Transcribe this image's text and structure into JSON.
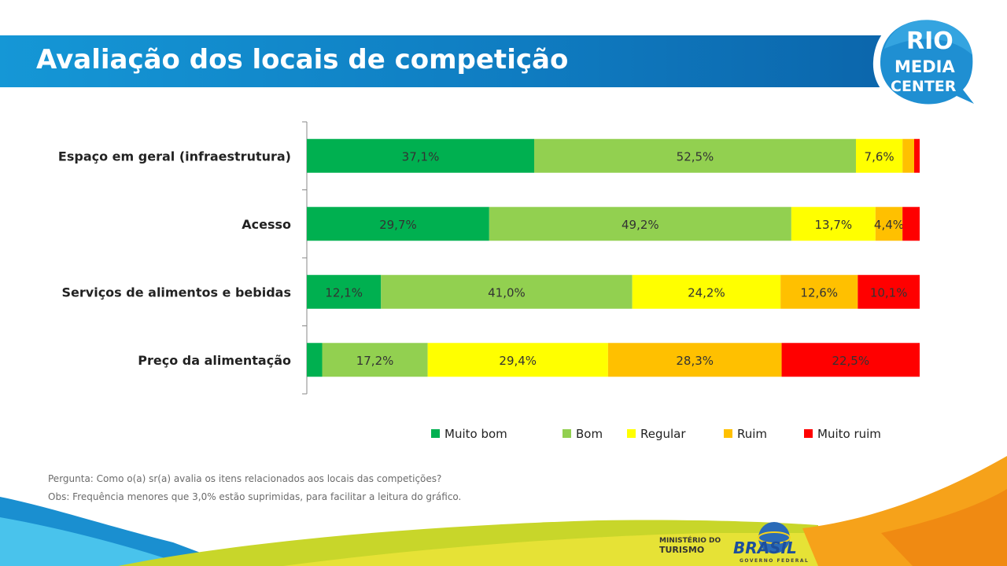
{
  "slide": {
    "title": "Avaliação dos locais de competição",
    "question_note": "Pergunta: Como o(a) sr(a) avalia os itens relacionados aos locais das competições?",
    "obs_note": "Obs: Frequência menores que 3,0% estão suprimidas, para facilitar a leitura do gráfico."
  },
  "logo": {
    "line1": "RIO",
    "line2": "MEDIA",
    "line3": "CENTER"
  },
  "footer": {
    "ministry_line1": "MINISTÉRIO DO",
    "ministry_line2": "TURISMO",
    "brasil": "BRASIL",
    "brasil_sub": "GOVERNO FEDERAL"
  },
  "chart_data": {
    "type": "bar",
    "orientation": "horizontal",
    "stacked": true,
    "normalized_to_100": true,
    "categories": [
      "Espaço em geral (infraestrutura)",
      "Acesso",
      "Serviços de alimentos e bebidas",
      "Preço da alimentação"
    ],
    "series": [
      {
        "name": "Muito bom",
        "color": "#00b050",
        "values": [
          37.1,
          29.7,
          12.1,
          2.5
        ],
        "labels": [
          "37,1%",
          "29,7%",
          "12,1%",
          ""
        ]
      },
      {
        "name": "Bom",
        "color": "#92d050",
        "values": [
          52.5,
          49.2,
          41.0,
          17.2
        ],
        "labels": [
          "52,5%",
          "49,2%",
          "41,0%",
          "17,2%"
        ]
      },
      {
        "name": "Regular",
        "color": "#ffff00",
        "values": [
          7.6,
          13.7,
          24.2,
          29.4
        ],
        "labels": [
          "7,6%",
          "13,7%",
          "24,2%",
          "29,4%"
        ]
      },
      {
        "name": "Ruim",
        "color": "#ffc000",
        "values": [
          1.9,
          4.4,
          12.6,
          28.3
        ],
        "labels": [
          "",
          "4,4%",
          "12,6%",
          "28,3%"
        ]
      },
      {
        "name": "Muito ruim",
        "color": "#ff0000",
        "values": [
          0.9,
          2.8,
          10.1,
          22.5
        ],
        "labels": [
          "",
          "",
          "10,1%",
          "22,5%"
        ]
      }
    ],
    "legend_position": "bottom",
    "grid": false
  }
}
